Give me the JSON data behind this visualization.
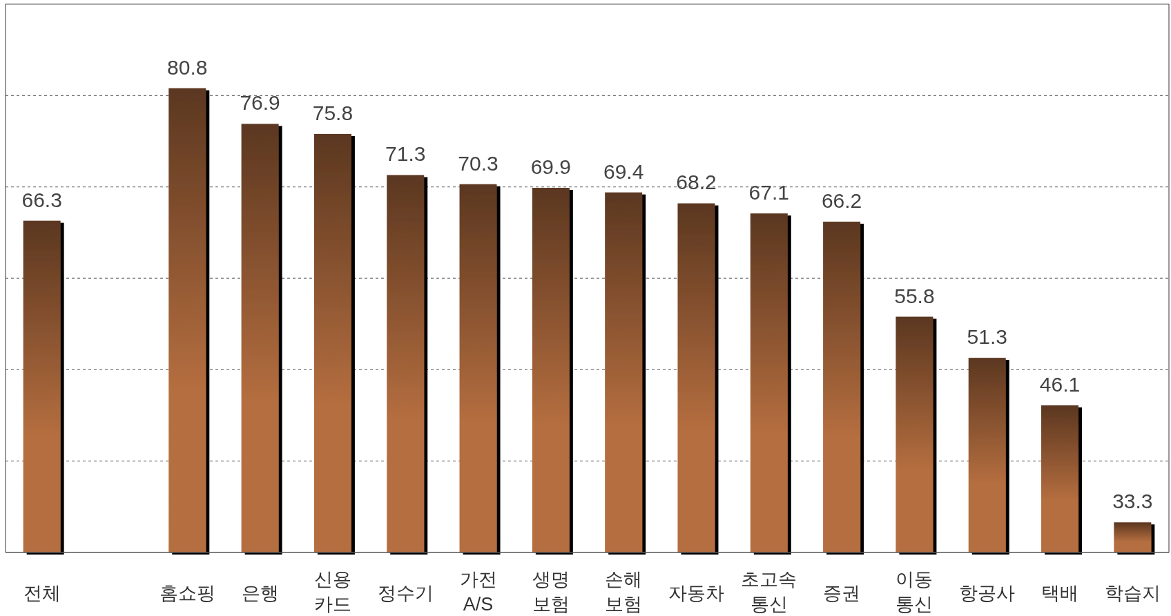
{
  "chart_data": {
    "type": "bar",
    "categories": [
      "전체",
      null,
      "홈쇼핑",
      "은행",
      "신용\n카드",
      "정수기",
      "가전\nA/S",
      "생명\n보험",
      "손해\n보험",
      "자동차",
      "초고속\n통신",
      "증권",
      "이동\n통신",
      "항공사",
      "택배",
      "학습지"
    ],
    "values": [
      66.3,
      null,
      80.8,
      76.9,
      75.8,
      71.3,
      70.3,
      69.9,
      69.4,
      68.2,
      67.1,
      66.2,
      55.8,
      51.3,
      46.1,
      33.3
    ],
    "color": "#b56e3f",
    "ylim": [
      30,
      90
    ],
    "yticks": [
      {
        "value": 30,
        "label": null
      },
      {
        "value": 40,
        "label": null
      },
      {
        "value": 50,
        "label": null
      },
      {
        "value": 60,
        "label": null
      },
      {
        "value": 70,
        "label": null
      },
      {
        "value": 80,
        "label": null
      },
      {
        "value": 90,
        "label": null
      }
    ],
    "grid": "y",
    "data_labels": true
  }
}
